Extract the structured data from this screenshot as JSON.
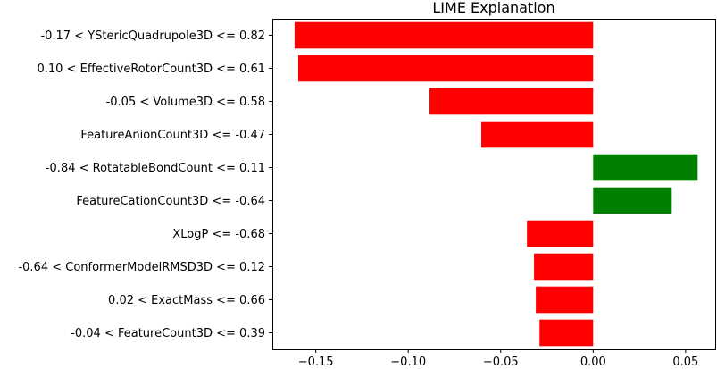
{
  "chart_data": {
    "type": "bar",
    "orientation": "horizontal",
    "title": "LIME Explanation",
    "xlabel": "",
    "ylabel": "",
    "xlim": [
      -0.1735,
      0.066
    ],
    "xticks": [
      -0.15,
      -0.1,
      -0.05,
      0.0,
      0.05
    ],
    "xtick_labels": [
      "−0.15",
      "−0.10",
      "−0.05",
      "0.00",
      "0.05"
    ],
    "grid": false,
    "categories": [
      "-0.17 < YStericQuadrupole3D <= 0.82",
      "0.10 < EffectiveRotorCount3D <= 0.61",
      "-0.05 < Volume3D <= 0.58",
      "FeatureAnionCount3D <= -0.47",
      "-0.84 < RotatableBondCount <= 0.11",
      "FeatureCationCount3D <= -0.64",
      "XLogP <= -0.68",
      "-0.64 < ConformerModelRMSD3D <= 0.12",
      "0.02 < ExactMass <= 0.66",
      "-0.04 < FeatureCount3D <= 0.39"
    ],
    "values": [
      -0.1615,
      -0.1595,
      -0.0885,
      -0.0605,
      0.0565,
      0.0425,
      -0.0358,
      -0.032,
      -0.031,
      -0.029
    ],
    "colors": {
      "positive": "#008000",
      "negative": "#ff0000"
    }
  }
}
